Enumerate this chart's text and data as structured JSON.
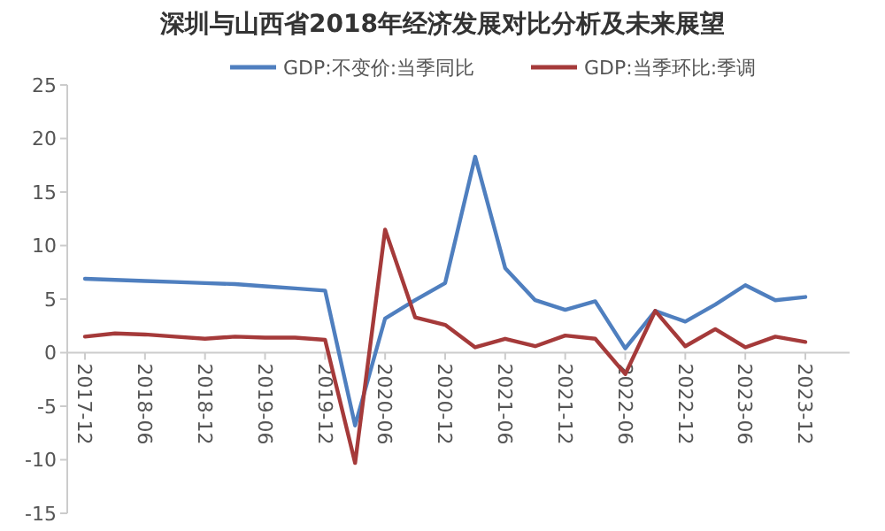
{
  "chart_data": {
    "type": "line",
    "title": "深圳与山西省2018年经济发展对比分析及未来展望",
    "categories": [
      "2017-12",
      null,
      "2018-06",
      null,
      "2018-12",
      null,
      "2019-06",
      null,
      "2019-12",
      null,
      "2020-06",
      null,
      "2020-12",
      null,
      "2021-06",
      null,
      "2021-12",
      null,
      "2022-06",
      null,
      "2022-12",
      null,
      "2023-06",
      null,
      "2023-12"
    ],
    "series": [
      {
        "name": "GDP:不变价:当季同比",
        "color": "#4f7fbf",
        "values": [
          6.9,
          6.8,
          6.7,
          6.6,
          6.5,
          6.4,
          6.2,
          6.0,
          5.8,
          -6.8,
          3.2,
          4.9,
          6.5,
          18.3,
          7.9,
          4.9,
          4.0,
          4.8,
          0.4,
          3.9,
          2.9,
          4.5,
          6.3,
          4.9,
          5.2
        ]
      },
      {
        "name": "GDP:当季环比:季调",
        "color": "#a53a3a",
        "values": [
          1.5,
          1.8,
          1.7,
          1.5,
          1.3,
          1.5,
          1.4,
          1.4,
          1.2,
          -10.3,
          11.5,
          3.3,
          2.6,
          0.5,
          1.3,
          0.6,
          1.6,
          1.3,
          -2.0,
          3.9,
          0.6,
          2.2,
          0.5,
          1.5,
          1.0
        ]
      }
    ],
    "ylim": [
      -15,
      25
    ],
    "yticks": [
      -15,
      -10,
      -5,
      0,
      5,
      10,
      15,
      20,
      25
    ],
    "grid": false,
    "legend": "top"
  }
}
